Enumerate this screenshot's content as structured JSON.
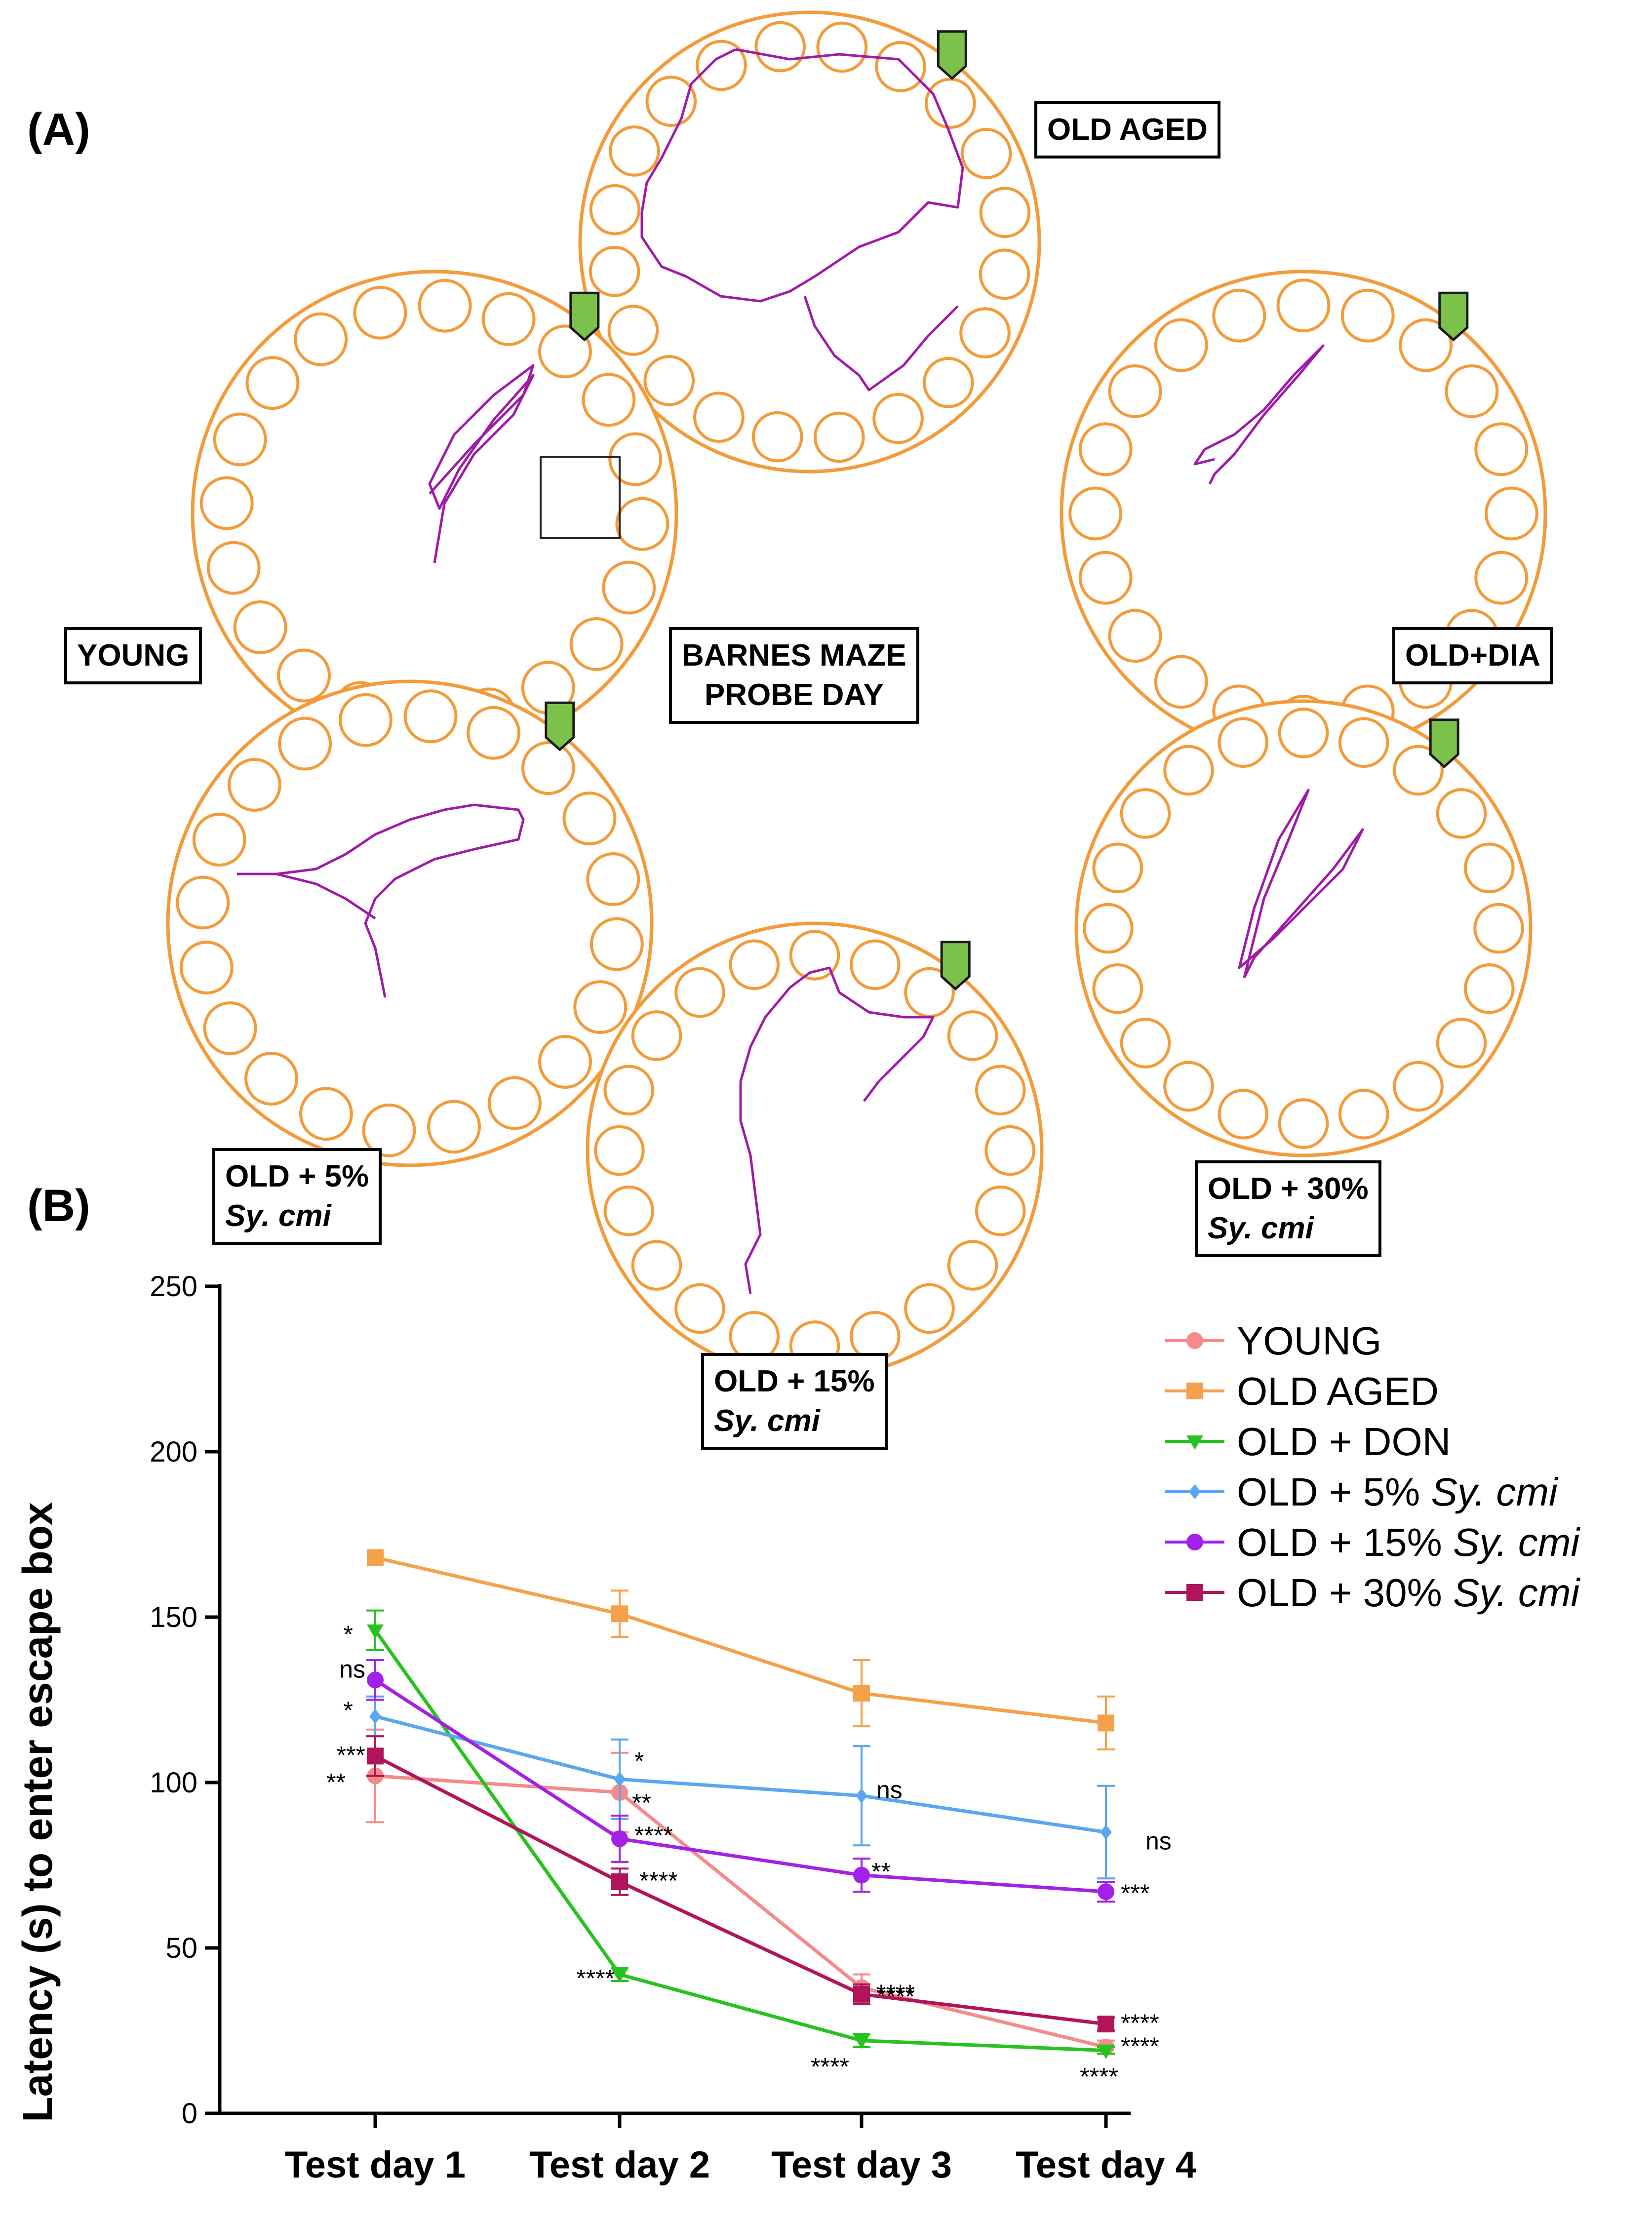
{
  "panel_a": {
    "label": "(A)",
    "center_title_line1": "BARNES MAZE",
    "center_title_line2": "PROBE DAY",
    "mazes": [
      {
        "label_line1": "OLD AGED",
        "label_line2": ""
      },
      {
        "label_line1": "YOUNG",
        "label_line2": ""
      },
      {
        "label_line1": "OLD+DIA",
        "label_line2": ""
      },
      {
        "label_line1": "OLD + 5%",
        "label_line2": "Sy. cmi"
      },
      {
        "label_line1": "OLD + 15%",
        "label_line2": "Sy. cmi"
      },
      {
        "label_line1": "OLD + 30%",
        "label_line2": "Sy. cmi"
      }
    ],
    "colors": {
      "maze": "#f39b3a",
      "track": "#a01aa8",
      "target": "#7cc24a"
    }
  },
  "panel_b": {
    "label": "(B)"
  },
  "chart_data": {
    "type": "line",
    "title": "",
    "xlabel": "",
    "ylabel": "Latency (s) to enter escape box",
    "categories": [
      "Test day 1",
      "Test day 2",
      "Test day 3",
      "Test day 4"
    ],
    "ylim": [
      0,
      250
    ],
    "yticks": [
      0,
      50,
      100,
      150,
      200,
      250
    ],
    "series": [
      {
        "name": "YOUNG",
        "color": "#f58a8a",
        "marker": "circle",
        "values": [
          102,
          97,
          38,
          20
        ],
        "errors": [
          14,
          12,
          4,
          2
        ],
        "sig": [
          "**",
          "**",
          "****",
          "****"
        ]
      },
      {
        "name": "OLD AGED",
        "color": "#f5a04a",
        "marker": "square",
        "values": [
          168,
          151,
          127,
          118
        ],
        "errors": [
          0,
          7,
          10,
          8
        ],
        "sig": [
          "",
          "",
          "",
          ""
        ]
      },
      {
        "name": "OLD + DON",
        "color": "#27c21f",
        "marker": "triangle-down",
        "values": [
          146,
          42,
          22,
          19
        ],
        "errors": [
          6,
          2,
          2,
          1
        ],
        "sig": [
          "*",
          "****",
          "****",
          "****"
        ]
      },
      {
        "name": "OLD + 5% Sy. cmi",
        "color": "#5aa6ef",
        "marker": "diamond",
        "values": [
          120,
          101,
          96,
          85
        ],
        "errors": [
          6,
          12,
          15,
          14
        ],
        "sig": [
          "*",
          "*",
          "ns",
          "ns"
        ]
      },
      {
        "name": "OLD + 15% Sy. cmi",
        "color": "#a321e6",
        "marker": "circle",
        "values": [
          131,
          83,
          72,
          67
        ],
        "errors": [
          6,
          7,
          5,
          3
        ],
        "sig": [
          "ns",
          "****",
          "**",
          "***"
        ]
      },
      {
        "name": "OLD + 30% Sy. cmi",
        "color": "#b0145a",
        "marker": "square",
        "values": [
          108,
          70,
          36,
          27
        ],
        "errors": [
          6,
          4,
          3,
          2
        ],
        "sig": [
          "***",
          "****",
          "****",
          "****"
        ]
      }
    ],
    "legend": [
      {
        "prefix": " YOUNG",
        "ital": ""
      },
      {
        "prefix": "OLD AGED",
        "ital": ""
      },
      {
        "prefix": "OLD + DON",
        "ital": ""
      },
      {
        "prefix": "OLD + 5% ",
        "ital": "Sy. cmi"
      },
      {
        "prefix": "OLD + 15% ",
        "ital": "Sy. cmi"
      },
      {
        "prefix": "OLD + 30% ",
        "ital": "Sy. cmi"
      }
    ]
  }
}
